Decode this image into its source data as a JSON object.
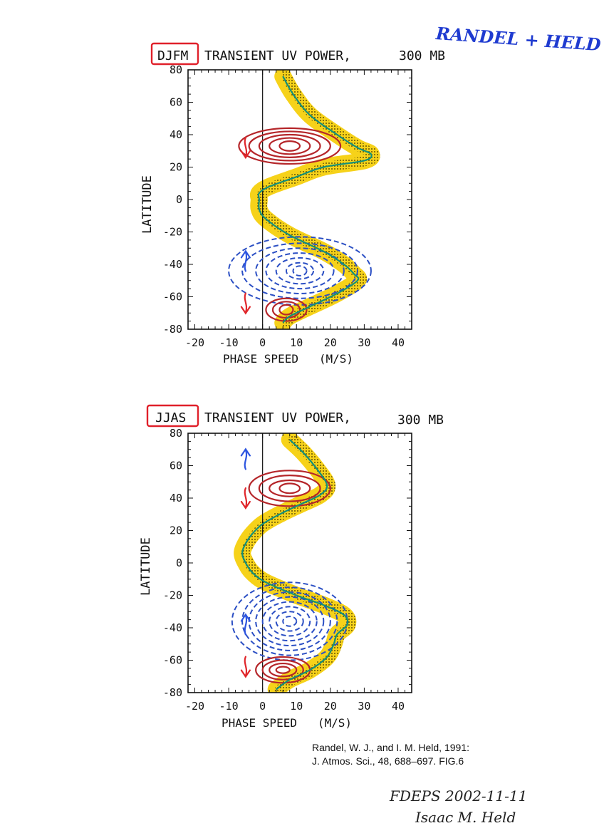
{
  "authors_note": "RANDEL + HELD",
  "signature": {
    "line1": "FDEPS 2002-11-11",
    "line2": "Isaac M. Held"
  },
  "citation": {
    "line1": "Randel, W. J., and I. M. Held, 1991:",
    "line2": "J. Atmos. Sci., 48, 688–697. FIG.6"
  },
  "colors": {
    "westward_contour": "#b5262a",
    "eastward_contour": "#2b4fc4",
    "jet_line": "#14907a",
    "jet_band": "#f6d21a",
    "stipple": "#3a2d00",
    "season_box": "#e0202a"
  },
  "chart_data": [
    {
      "type": "contour",
      "season": "DJFM",
      "title": "TRANSIENT UV POWER,",
      "level": "300 MB",
      "xlabel": "PHASE SPEED   (M/S)",
      "ylabel": "LATITUDE",
      "xlim": [
        -22,
        44
      ],
      "ylim": [
        -80,
        80
      ],
      "x_ticks": [
        -20,
        -10,
        0,
        10,
        20,
        30,
        40
      ],
      "y_ticks": [
        80,
        60,
        40,
        20,
        0,
        -20,
        -40,
        -60,
        -80
      ],
      "zonal_wind_line": {
        "lat": [
          76,
          65,
          52,
          40,
          32,
          28,
          24,
          20,
          14,
          8,
          4,
          0,
          -6,
          -12,
          -22,
          -32,
          -40,
          -46,
          -50,
          -58,
          -66,
          -72,
          -76
        ],
        "speed": [
          6,
          9,
          14,
          22,
          28,
          32,
          30,
          18,
          10,
          2,
          -1,
          -1,
          -1,
          1,
          8,
          18,
          24,
          27,
          28,
          22,
          14,
          8,
          6
        ]
      },
      "westward_momentum_flux": [
        {
          "center": [
            8,
            33
          ],
          "rx": [
            3,
            6,
            9,
            12,
            15
          ],
          "ry": [
            3,
            5,
            7,
            9,
            11
          ]
        },
        {
          "center": [
            7,
            -68
          ],
          "rx": [
            2,
            4,
            6
          ],
          "ry": [
            3,
            5,
            7
          ]
        }
      ],
      "eastward_momentum_flux": [
        {
          "center": [
            11,
            -44
          ],
          "rx": [
            2,
            4,
            7,
            10,
            13,
            17,
            21
          ],
          "ry": [
            3,
            5,
            8,
            11,
            14,
            17,
            21
          ]
        }
      ],
      "arrows": [
        {
          "lat": 32,
          "direction": "down",
          "color": "red"
        },
        {
          "lat": -38,
          "direction": "up",
          "color": "blue"
        },
        {
          "lat": -64,
          "direction": "down",
          "color": "red"
        }
      ]
    },
    {
      "type": "contour",
      "season": "JJAS",
      "title": "TRANSIENT UV POWER,",
      "level": "300 MB",
      "xlabel": "PHASE SPEED   (M/S)",
      "ylabel": "LATITUDE",
      "xlim": [
        -22,
        44
      ],
      "ylim": [
        -80,
        80
      ],
      "x_ticks": [
        -20,
        -10,
        0,
        10,
        20,
        30,
        40
      ],
      "y_ticks": [
        80,
        60,
        40,
        20,
        0,
        -20,
        -40,
        -60,
        -80
      ],
      "zonal_wind_line": {
        "lat": [
          76,
          68,
          58,
          48,
          42,
          36,
          30,
          24,
          18,
          12,
          6,
          0,
          -6,
          -12,
          -20,
          -26,
          -32,
          -38,
          -44,
          -50,
          -58,
          -66,
          -72,
          -78
        ],
        "speed": [
          8,
          12,
          16,
          19,
          17,
          11,
          5,
          0,
          -3,
          -5,
          -6,
          -5,
          -3,
          1,
          10,
          18,
          24,
          25,
          22,
          21,
          19,
          14,
          8,
          4
        ]
      },
      "westward_momentum_flux": [
        {
          "center": [
            8,
            46
          ],
          "rx": [
            3,
            6,
            9,
            12
          ],
          "ry": [
            3,
            5,
            8,
            11
          ]
        },
        {
          "center": [
            6,
            -66
          ],
          "rx": [
            2,
            4,
            6,
            8
          ],
          "ry": [
            2,
            4,
            6,
            8
          ]
        }
      ],
      "eastward_momentum_flux": [
        {
          "center": [
            8,
            -36
          ],
          "rx": [
            2,
            4,
            6,
            8,
            10,
            12,
            14,
            17
          ],
          "ry": [
            3,
            6,
            9,
            12,
            15,
            18,
            21,
            24
          ]
        }
      ],
      "arrows": [
        {
          "lat": 64,
          "direction": "up",
          "color": "blue"
        },
        {
          "lat": 40,
          "direction": "down",
          "color": "red"
        },
        {
          "lat": -38,
          "direction": "up",
          "color": "blue"
        },
        {
          "lat": -64,
          "direction": "down",
          "color": "red"
        }
      ]
    }
  ]
}
